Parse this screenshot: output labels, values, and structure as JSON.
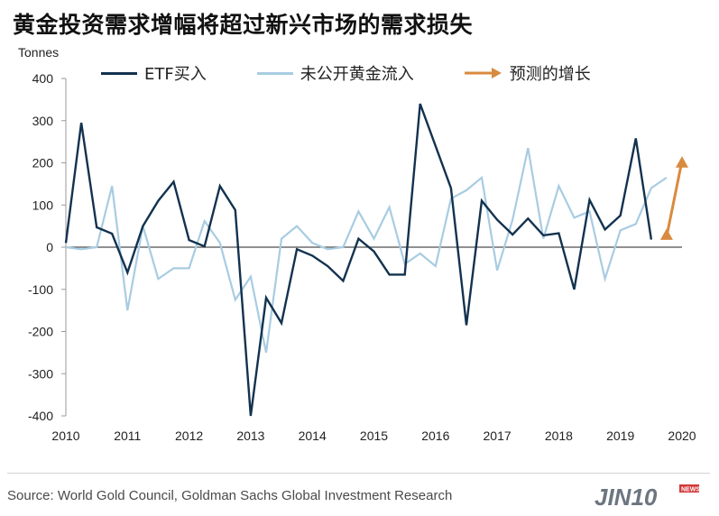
{
  "title": "黄金投资需求增幅将超过新兴市场的需求损失",
  "source": "Source: World Gold Council, Goldman Sachs Global Investment Research",
  "watermark": "JIN10",
  "colors": {
    "etf": "#13324f",
    "otc": "#a8cce2",
    "forecast": "#d98a3f",
    "zero_line": "#4d4d4d"
  },
  "chart_data": {
    "type": "line",
    "ylabel": "Tonnes",
    "ylim": [
      -400,
      400
    ],
    "yticks": [
      -400,
      -300,
      -200,
      -100,
      0,
      100,
      200,
      300,
      400
    ],
    "xlim": [
      2010.0,
      2020.0
    ],
    "xticks": [
      "2010",
      "2011",
      "2012",
      "2013",
      "2014",
      "2015",
      "2016",
      "2017",
      "2018",
      "2019",
      "2020"
    ],
    "legend": "top",
    "series": [
      {
        "name": "ETF买入",
        "x": [
          2010.0,
          2010.25,
          2010.5,
          2010.75,
          2011.0,
          2011.25,
          2011.5,
          2011.75,
          2012.0,
          2012.25,
          2012.5,
          2012.75,
          2013.0,
          2013.25,
          2013.5,
          2013.75,
          2014.0,
          2014.25,
          2014.5,
          2014.75,
          2015.0,
          2015.25,
          2015.5,
          2015.75,
          2016.0,
          2016.25,
          2016.5,
          2016.75,
          2017.0,
          2017.25,
          2017.5,
          2017.75,
          2018.0,
          2018.25,
          2018.5,
          2018.75,
          2019.0,
          2019.25,
          2019.5,
          2019.75
        ],
        "values": [
          10,
          295,
          47,
          32,
          -60,
          50,
          110,
          155,
          17,
          2,
          145,
          88,
          -400,
          -120,
          -180,
          -5,
          -20,
          -45,
          -80,
          20,
          -10,
          -65,
          -65,
          340,
          240,
          140,
          -185,
          110,
          65,
          30,
          68,
          28,
          33,
          -100,
          112,
          42,
          75,
          258,
          18,
          null
        ],
        "x_offset_note": ""
      },
      {
        "name": "未公开黄金流入",
        "x": [
          2010.0,
          2010.25,
          2010.5,
          2010.75,
          2011.0,
          2011.25,
          2011.5,
          2011.75,
          2012.0,
          2012.25,
          2012.5,
          2012.75,
          2013.0,
          2013.25,
          2013.5,
          2013.75,
          2014.0,
          2014.25,
          2014.5,
          2014.75,
          2015.0,
          2015.25,
          2015.5,
          2015.75,
          2016.0,
          2016.25,
          2016.5,
          2016.75,
          2017.0,
          2017.25,
          2017.5,
          2017.75,
          2018.0,
          2018.25,
          2018.5,
          2018.75,
          2019.0,
          2019.25,
          2019.5,
          2019.75
        ],
        "values": [
          0,
          -5,
          0,
          145,
          -150,
          50,
          -75,
          -50,
          -50,
          62,
          10,
          -125,
          -70,
          -250,
          20,
          50,
          10,
          -5,
          0,
          85,
          20,
          95,
          -40,
          -15,
          -45,
          115,
          135,
          165,
          -55,
          65,
          235,
          20,
          145,
          70,
          85,
          -75,
          40,
          55,
          140,
          165
        ]
      },
      {
        "name": "预测的增长",
        "x": [
          2019.75,
          2020.0
        ],
        "values": [
          25,
          205
        ]
      }
    ]
  }
}
